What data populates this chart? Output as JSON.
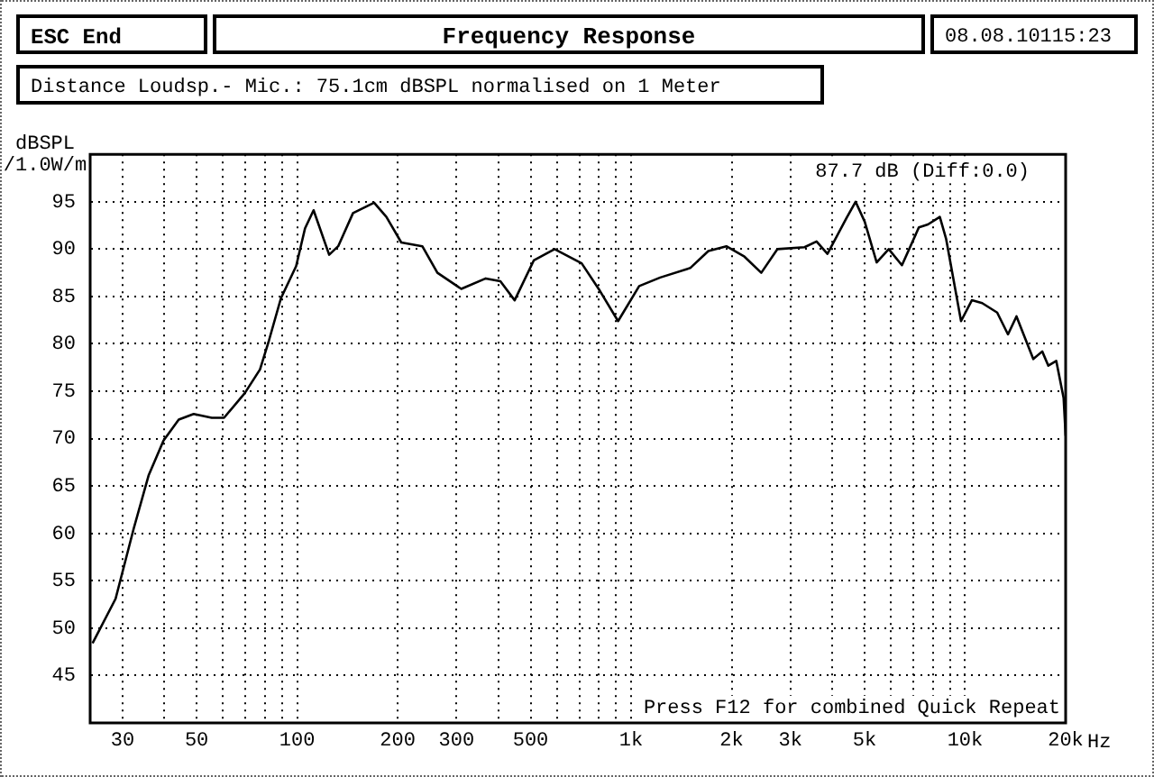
{
  "chart_data": {
    "type": "line",
    "title": "Frequency Response",
    "ylabel": "dBSPL /1.0W/m",
    "annotations": [
      "ESC End",
      "08.08.10115:23",
      "Distance Loudsp.- Mic.: 75.1cm dBSPL normalised on 1 Meter",
      "87.7 dB (Diff:0.0)",
      "Press F12 for combined Quick Repeat"
    ],
    "x": [
      24.4,
      28.6,
      32.4,
      35.9,
      39.8,
      44.2,
      49,
      55.5,
      60.4,
      69.7,
      77.4,
      82.4,
      89.4,
      99.3,
      105.6,
      112,
      124.7,
      132.7,
      147,
      170,
      185,
      205,
      237,
      263,
      310,
      367,
      406,
      448,
      511,
      590,
      711,
      806,
      914,
      1057,
      1222,
      1503,
      1703,
      1928,
      2184,
      2453,
      2743,
      3305,
      3591,
      3871,
      4418,
      4700,
      5004,
      5435,
      5906,
      6469,
      7273,
      7739,
      8400,
      8770,
      9724,
      10476,
      11247,
      12474,
      13440,
      14250,
      16000,
      17020,
      17750,
      18750,
      19720,
      20000
    ],
    "series": [
      {
        "color": "#000000",
        "values": [
          48.4,
          53.1,
          60.5,
          66.1,
          69.8,
          72.0,
          72.6,
          72.2,
          72.2,
          74.8,
          77.3,
          80.4,
          84.8,
          88.2,
          92.2,
          94.1,
          89.4,
          90.3,
          93.8,
          94.9,
          93.4,
          90.7,
          90.3,
          87.5,
          85.8,
          86.9,
          86.6,
          84.6,
          88.8,
          90.0,
          88.5,
          85.6,
          82.4,
          86.1,
          87.0,
          88.0,
          89.8,
          90.3,
          89.2,
          87.5,
          90.0,
          90.2,
          90.8,
          89.5,
          93.3,
          95.0,
          92.9,
          88.6,
          90.0,
          88.3,
          92.3,
          92.6,
          93.4,
          91.1,
          82.4,
          84.6,
          84.3,
          83.3,
          81.0,
          82.9,
          78.4,
          79.2,
          77.7,
          78.2,
          74.3,
          70.3
        ]
      }
    ],
    "xlim": [
      24,
      20000
    ],
    "ylim": [
      40,
      100
    ],
    "xticks": [
      30,
      {
        "value": 40,
        "label": null
      },
      50,
      {
        "value": 60,
        "label": null
      },
      {
        "value": 70,
        "label": null
      },
      {
        "value": 80,
        "label": null
      },
      {
        "value": 90,
        "label": null
      },
      100,
      200,
      300,
      {
        "value": 400,
        "label": null
      },
      500,
      {
        "value": 600,
        "label": null
      },
      {
        "value": 700,
        "label": null
      },
      {
        "value": 800,
        "label": null
      },
      {
        "value": 900,
        "label": null
      },
      {
        "value": 1000,
        "label": "1k"
      },
      {
        "value": 2000,
        "label": "2k"
      },
      {
        "value": 3000,
        "label": "3k"
      },
      {
        "value": 4000,
        "label": null
      },
      {
        "value": 5000,
        "label": "5k"
      },
      {
        "value": 6000,
        "label": null
      },
      {
        "value": 7000,
        "label": null
      },
      {
        "value": 8000,
        "label": null
      },
      {
        "value": 9000,
        "label": null
      },
      {
        "value": 10000,
        "label": "10k"
      },
      {
        "value": 20000,
        "label": "20k"
      }
    ],
    "xlabel": "Hz",
    "yticks": [
      45,
      50,
      55,
      60,
      65,
      70,
      75,
      80,
      85,
      90,
      95
    ],
    "log": "x",
    "grid": true,
    "legend": false,
    "marker": "none",
    "line_style": "solid"
  }
}
